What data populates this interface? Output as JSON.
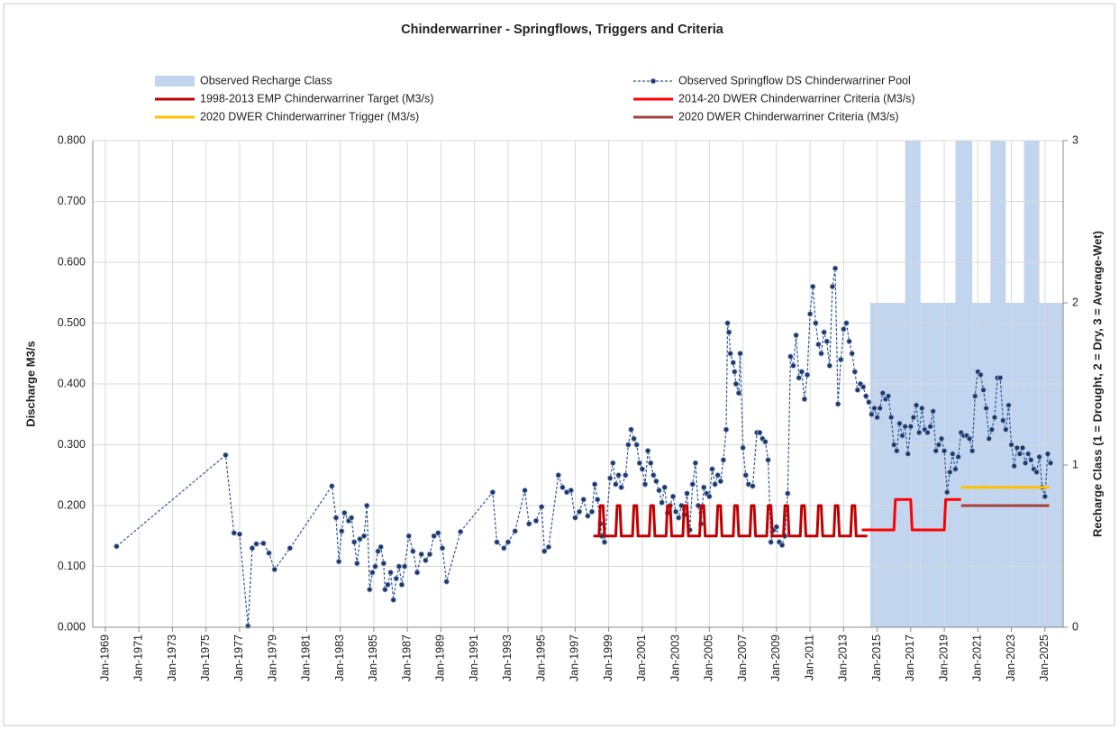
{
  "chart_data": {
    "type": "line",
    "title": "Chinderwarriner - Springflows, Triggers and Criteria",
    "ylabel": "Discharge M3/s",
    "y2label": "Recharge Class (1 = Drought, 2 = Dry, 3 = Average-Wet)",
    "xlim": [
      "1968-04",
      "2026-02"
    ],
    "xticks": [
      {
        "value": "1969-01",
        "label": "Jan-1969"
      },
      {
        "value": "1971-01",
        "label": "Jan-1971"
      },
      {
        "value": "1973-01",
        "label": "Jan-1973"
      },
      {
        "value": "1975-01",
        "label": "Jan-1975"
      },
      {
        "value": "1977-01",
        "label": "Jan-1977"
      },
      {
        "value": "1979-01",
        "label": "Jan-1979"
      },
      {
        "value": "1981-01",
        "label": "Jan-1981"
      },
      {
        "value": "1983-01",
        "label": "Jan-1983"
      },
      {
        "value": "1985-01",
        "label": "Jan-1985"
      },
      {
        "value": "1987-01",
        "label": "Jan-1987"
      },
      {
        "value": "1989-01",
        "label": "Jan-1989"
      },
      {
        "value": "1991-01",
        "label": "Jan-1991"
      },
      {
        "value": "1993-01",
        "label": "Jan-1993"
      },
      {
        "value": "1995-01",
        "label": "Jan-1995"
      },
      {
        "value": "1997-01",
        "label": "Jan-1997"
      },
      {
        "value": "1999-01",
        "label": "Jan-1999"
      },
      {
        "value": "2001-01",
        "label": "Jan-2001"
      },
      {
        "value": "2003-01",
        "label": "Jan-2003"
      },
      {
        "value": "2005-01",
        "label": "Jan-2005"
      },
      {
        "value": "2007-01",
        "label": "Jan-2007"
      },
      {
        "value": "2009-01",
        "label": "Jan-2009"
      },
      {
        "value": "2011-01",
        "label": "Jan-2011"
      },
      {
        "value": "2013-01",
        "label": "Jan-2013"
      },
      {
        "value": "2015-01",
        "label": "Jan-2015"
      },
      {
        "value": "2017-01",
        "label": "Jan-2017"
      },
      {
        "value": "2019-01",
        "label": "Jan-2019"
      },
      {
        "value": "2021-01",
        "label": "Jan-2021"
      },
      {
        "value": "2023-01",
        "label": "Jan-2023"
      },
      {
        "value": "2025-01",
        "label": "Jan-2025"
      }
    ],
    "ylim": [
      0,
      0.8
    ],
    "yticks": [
      {
        "value": 0,
        "label": "0.000"
      },
      {
        "value": 0.1,
        "label": "0.100"
      },
      {
        "value": 0.2,
        "label": "0.200"
      },
      {
        "value": 0.3,
        "label": "0.300"
      },
      {
        "value": 0.4,
        "label": "0.400"
      },
      {
        "value": 0.5,
        "label": "0.500"
      },
      {
        "value": 0.6,
        "label": "0.600"
      },
      {
        "value": 0.7,
        "label": "0.700"
      },
      {
        "value": 0.8,
        "label": "0.800"
      }
    ],
    "y2lim": [
      0,
      3
    ],
    "y2ticks": [
      0,
      1,
      2,
      3
    ],
    "grid": true,
    "legend": "top",
    "series": [
      {
        "name": "Observed Recharge Class",
        "kind": "area",
        "axis": "y2",
        "color": "#c2d5ef",
        "x": [
          "2014-08",
          "2016-09",
          "2017-08",
          "2019-09",
          "2020-09",
          "2021-10",
          "2022-09",
          "2023-10",
          "2024-09"
        ],
        "values": [
          2,
          3,
          2,
          3,
          2,
          3,
          2,
          3,
          2
        ]
      },
      {
        "name": "Observed Springflow DS Chinderwarriner Pool",
        "kind": "markers",
        "color": "#2f5597",
        "x": [
          "1969-09",
          "1976-03",
          "1976-09",
          "1977-01",
          "1977-07",
          "1977-10",
          "1978-01",
          "1978-06",
          "1978-10",
          "1979-02",
          "1980-01",
          "1982-07",
          "1982-10",
          "1982-12",
          "1983-02",
          "1983-04",
          "1983-07",
          "1983-09",
          "1983-11",
          "1984-01",
          "1984-03",
          "1984-06",
          "1984-08",
          "1984-10",
          "1984-12",
          "1985-02",
          "1985-04",
          "1985-06",
          "1985-08",
          "1985-09",
          "1985-11",
          "1986-01",
          "1986-03",
          "1986-05",
          "1986-07",
          "1986-09",
          "1986-11",
          "1987-02",
          "1987-05",
          "1987-08",
          "1987-11",
          "1988-02",
          "1988-05",
          "1988-08",
          "1988-11",
          "1989-02",
          "1989-05",
          "1990-03",
          "1992-02",
          "1992-05",
          "1992-10",
          "1993-01",
          "1993-06",
          "1994-01",
          "1994-04",
          "1994-09",
          "1995-01",
          "1995-03",
          "1995-06",
          "1996-01",
          "1996-04",
          "1996-07",
          "1996-10",
          "1997-01",
          "1997-04",
          "1997-07",
          "1997-10",
          "1998-01",
          "1998-03",
          "1998-05",
          "1998-07",
          "1998-08",
          "1998-10",
          "1999-02",
          "1999-04",
          "1999-06",
          "1999-08",
          "1999-10",
          "2000-01",
          "2000-03",
          "2000-05",
          "2000-07",
          "2000-09",
          "2000-11",
          "2001-01",
          "2001-03",
          "2001-05",
          "2001-07",
          "2001-09",
          "2001-11",
          "2002-01",
          "2002-03",
          "2002-05",
          "2002-07",
          "2002-09",
          "2002-11",
          "2003-01",
          "2003-03",
          "2003-05",
          "2003-07",
          "2003-09",
          "2003-11",
          "2004-01",
          "2004-03",
          "2004-05",
          "2004-07",
          "2004-09",
          "2004-11",
          "2005-01",
          "2005-03",
          "2005-05",
          "2005-07",
          "2005-09",
          "2005-11",
          "2006-01",
          "2006-02",
          "2006-03",
          "2006-04",
          "2006-06",
          "2006-07",
          "2006-08",
          "2006-10",
          "2006-11",
          "2007-01",
          "2007-03",
          "2007-05",
          "2007-08",
          "2007-11",
          "2008-01",
          "2008-03",
          "2008-05",
          "2008-07",
          "2008-09",
          "2008-11",
          "2009-01",
          "2009-03",
          "2009-05",
          "2009-07",
          "2009-09",
          "2009-11",
          "2010-01",
          "2010-03",
          "2010-05",
          "2010-07",
          "2010-09",
          "2010-11",
          "2011-01",
          "2011-03",
          "2011-05",
          "2011-07",
          "2011-09",
          "2011-11",
          "2012-01",
          "2012-03",
          "2012-05",
          "2012-07",
          "2012-09",
          "2012-11",
          "2013-01",
          "2013-03",
          "2013-05",
          "2013-07",
          "2013-09",
          "2013-11",
          "2014-01",
          "2014-03",
          "2014-05",
          "2014-07",
          "2014-09",
          "2014-11",
          "2015-01",
          "2015-03",
          "2015-05",
          "2015-07",
          "2015-09",
          "2015-11",
          "2016-01",
          "2016-03",
          "2016-05",
          "2016-07",
          "2016-09",
          "2016-11",
          "2017-01",
          "2017-03",
          "2017-05",
          "2017-07",
          "2017-09",
          "2017-11",
          "2018-01",
          "2018-03",
          "2018-05",
          "2018-07",
          "2018-09",
          "2018-11",
          "2019-01",
          "2019-03",
          "2019-05",
          "2019-07",
          "2019-09",
          "2019-11",
          "2020-01",
          "2020-03",
          "2020-05",
          "2020-07",
          "2020-09",
          "2020-11",
          "2021-01",
          "2021-03",
          "2021-05",
          "2021-07",
          "2021-09",
          "2021-11",
          "2022-01",
          "2022-03",
          "2022-05",
          "2022-07",
          "2022-09",
          "2022-11",
          "2023-01",
          "2023-03",
          "2023-05",
          "2023-07",
          "2023-09",
          "2023-11",
          "2024-01",
          "2024-03",
          "2024-05",
          "2024-07",
          "2024-09",
          "2024-11",
          "2025-01",
          "2025-03",
          "2025-05"
        ],
        "values": [
          0.133,
          0.283,
          0.155,
          0.153,
          0.002,
          0.13,
          0.137,
          0.138,
          0.122,
          0.095,
          0.13,
          0.232,
          0.18,
          0.108,
          0.158,
          0.188,
          0.175,
          0.18,
          0.14,
          0.105,
          0.145,
          0.15,
          0.2,
          0.062,
          0.09,
          0.1,
          0.125,
          0.132,
          0.105,
          0.062,
          0.07,
          0.09,
          0.045,
          0.08,
          0.1,
          0.07,
          0.1,
          0.15,
          0.125,
          0.09,
          0.12,
          0.11,
          0.12,
          0.15,
          0.155,
          0.13,
          0.075,
          0.157,
          0.222,
          0.14,
          0.13,
          0.14,
          0.158,
          0.225,
          0.17,
          0.175,
          0.198,
          0.125,
          0.132,
          0.25,
          0.23,
          0.222,
          0.225,
          0.18,
          0.19,
          0.21,
          0.183,
          0.19,
          0.235,
          0.21,
          0.17,
          0.15,
          0.14,
          0.245,
          0.27,
          0.235,
          0.25,
          0.23,
          0.25,
          0.3,
          0.325,
          0.31,
          0.3,
          0.27,
          0.26,
          0.235,
          0.29,
          0.27,
          0.25,
          0.24,
          0.225,
          0.205,
          0.23,
          0.188,
          0.2,
          0.215,
          0.19,
          0.18,
          0.2,
          0.185,
          0.22,
          0.16,
          0.235,
          0.27,
          0.2,
          0.17,
          0.23,
          0.22,
          0.215,
          0.26,
          0.235,
          0.25,
          0.24,
          0.275,
          0.325,
          0.5,
          0.485,
          0.45,
          0.435,
          0.42,
          0.4,
          0.385,
          0.45,
          0.295,
          0.25,
          0.235,
          0.232,
          0.32,
          0.32,
          0.31,
          0.305,
          0.275,
          0.14,
          0.16,
          0.165,
          0.14,
          0.135,
          0.15,
          0.22,
          0.445,
          0.43,
          0.48,
          0.41,
          0.42,
          0.375,
          0.415,
          0.515,
          0.56,
          0.5,
          0.465,
          0.45,
          0.485,
          0.47,
          0.43,
          0.56,
          0.59,
          0.367,
          0.44,
          0.49,
          0.5,
          0.47,
          0.45,
          0.42,
          0.39,
          0.4,
          0.395,
          0.38,
          0.37,
          0.35,
          0.36,
          0.345,
          0.36,
          0.385,
          0.375,
          0.38,
          0.345,
          0.3,
          0.29,
          0.335,
          0.315,
          0.33,
          0.285,
          0.33,
          0.345,
          0.365,
          0.32,
          0.36,
          0.325,
          0.32,
          0.33,
          0.355,
          0.29,
          0.3,
          0.31,
          0.29,
          0.222,
          0.255,
          0.285,
          0.26,
          0.28,
          0.32,
          0.315,
          0.315,
          0.31,
          0.29,
          0.38,
          0.42,
          0.415,
          0.39,
          0.36,
          0.31,
          0.325,
          0.345,
          0.41,
          0.41,
          0.34,
          0.325,
          0.365,
          0.3,
          0.265,
          0.295,
          0.285,
          0.295,
          0.27,
          0.285,
          0.275,
          0.26,
          0.255,
          0.28,
          0.23,
          0.215,
          0.285,
          0.27
        ]
      },
      {
        "name": "1998-2013 EMP Chinderwarriner Target (M3/s)",
        "kind": "line",
        "color": "#c00000",
        "x": [
          "1998-02",
          "1998-06",
          "1998-07",
          "1998-09",
          "1998-10",
          "1999-06",
          "1999-07",
          "1999-09",
          "1999-10",
          "2000-06",
          "2000-07",
          "2000-09",
          "2000-10",
          "2001-06",
          "2001-07",
          "2001-09",
          "2001-10",
          "2002-06",
          "2002-07",
          "2002-09",
          "2002-10",
          "2003-06",
          "2003-07",
          "2003-09",
          "2003-10",
          "2004-06",
          "2004-07",
          "2004-09",
          "2004-10",
          "2005-06",
          "2005-07",
          "2005-09",
          "2005-10",
          "2006-06",
          "2006-07",
          "2006-09",
          "2006-10",
          "2007-06",
          "2007-07",
          "2007-09",
          "2007-10",
          "2008-06",
          "2008-07",
          "2008-09",
          "2008-10",
          "2009-06",
          "2009-07",
          "2009-09",
          "2009-10",
          "2010-06",
          "2010-07",
          "2010-09",
          "2010-10",
          "2011-06",
          "2011-07",
          "2011-09",
          "2011-10",
          "2012-06",
          "2012-07",
          "2012-09",
          "2012-10",
          "2013-06",
          "2013-07",
          "2013-09",
          "2013-10",
          "2014-06"
        ],
        "values": [
          0.15,
          0.15,
          0.2,
          0.2,
          0.15,
          0.15,
          0.2,
          0.2,
          0.15,
          0.15,
          0.2,
          0.2,
          0.15,
          0.15,
          0.2,
          0.2,
          0.15,
          0.15,
          0.2,
          0.2,
          0.15,
          0.15,
          0.2,
          0.2,
          0.15,
          0.15,
          0.2,
          0.2,
          0.15,
          0.15,
          0.2,
          0.2,
          0.15,
          0.15,
          0.2,
          0.2,
          0.15,
          0.15,
          0.2,
          0.2,
          0.15,
          0.15,
          0.2,
          0.2,
          0.15,
          0.15,
          0.2,
          0.2,
          0.15,
          0.15,
          0.2,
          0.2,
          0.15,
          0.15,
          0.2,
          0.2,
          0.15,
          0.15,
          0.2,
          0.2,
          0.15,
          0.15,
          0.2,
          0.2,
          0.15,
          0.15
        ]
      },
      {
        "name": "2014-20 DWER Chinderwarriner Criteria (M3/s)",
        "kind": "line",
        "color": "#ff0000",
        "x": [
          "2014-02",
          "2016-01",
          "2016-02",
          "2017-01",
          "2017-02",
          "2019-01",
          "2019-02",
          "2020-01"
        ],
        "values": [
          0.16,
          0.16,
          0.21,
          0.21,
          0.16,
          0.16,
          0.21,
          0.21
        ]
      },
      {
        "name": "2020 DWER Chinderwarriner Trigger (M3/s)",
        "kind": "line",
        "color": "#ffc000",
        "x": [
          "2020-01",
          "2025-04"
        ],
        "values": [
          0.23,
          0.23
        ]
      },
      {
        "name": "2020 DWER Chinderwarriner Criteria (M3/s)",
        "kind": "line",
        "color": "#a5413b",
        "x": [
          "2020-01",
          "2025-04"
        ],
        "values": [
          0.2,
          0.2
        ]
      }
    ]
  }
}
